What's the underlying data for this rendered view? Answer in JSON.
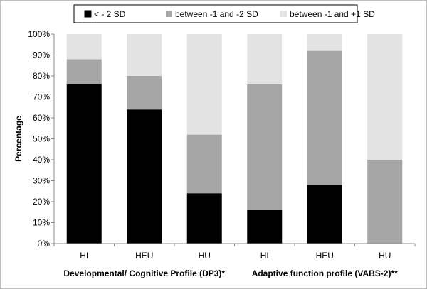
{
  "chart_data": {
    "type": "bar",
    "stacked": true,
    "categories": [
      "HI",
      "HEU",
      "HU",
      "HI",
      "HEU",
      "HU"
    ],
    "groups": [
      {
        "label": "Developmental/ Cognitive Profile (DP3)*",
        "categories": [
          "HI",
          "HEU",
          "HU"
        ]
      },
      {
        "label": "Adaptive function profile (VABS-2)**",
        "categories": [
          "HI",
          "HEU",
          "HU"
        ]
      }
    ],
    "series": [
      {
        "name": "< - 2 SD",
        "color": "#000000",
        "values": [
          76,
          64,
          24,
          16,
          28,
          0
        ]
      },
      {
        "name": "between -1 and -2 SD",
        "color": "#a6a6a6",
        "values": [
          12,
          16,
          28,
          60,
          64,
          40
        ]
      },
      {
        "name": "between -1 and +1 SD",
        "color": "#e3e3e3",
        "values": [
          12,
          20,
          48,
          24,
          8,
          60
        ]
      }
    ],
    "ylabel": "Percentage",
    "ylim": [
      0,
      100
    ],
    "yticks": [
      "0%",
      "10%",
      "20%",
      "30%",
      "40%",
      "50%",
      "60%",
      "70%",
      "80%",
      "90%",
      "100%"
    ],
    "grid": false,
    "legend_position": "top"
  }
}
